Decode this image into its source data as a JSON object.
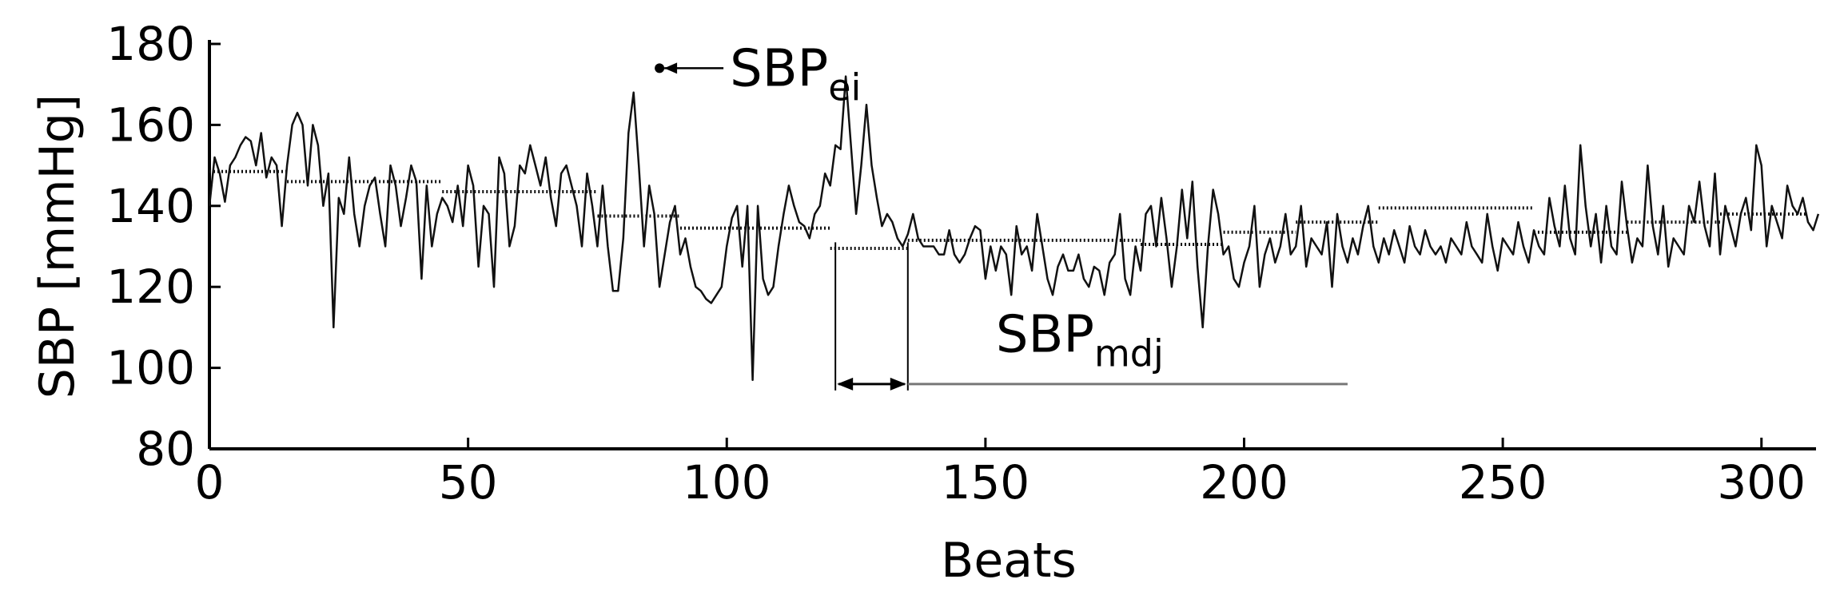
{
  "chart_data": {
    "type": "line",
    "xlabel": "Beats",
    "ylabel": "SBP [mmHg]",
    "xlim": [
      0,
      309
    ],
    "ylim": [
      80,
      180
    ],
    "xticks": [
      0,
      50,
      100,
      150,
      200,
      250,
      300
    ],
    "yticks": [
      80,
      100,
      120,
      140,
      160,
      180
    ],
    "grid": false,
    "legend": "none",
    "colors": {
      "line": "#111111",
      "segment": "#111111",
      "annotation": "#777777"
    },
    "series": [
      {
        "values": [
          140,
          152,
          148,
          141,
          150,
          152,
          155,
          157,
          156,
          150,
          158,
          147,
          152,
          150,
          135,
          150,
          160,
          163,
          160,
          145,
          160,
          155,
          140,
          148,
          110,
          142,
          138,
          152,
          138,
          130,
          140,
          145,
          147,
          138,
          130,
          150,
          145,
          135,
          142,
          150,
          146,
          122,
          145,
          130,
          138,
          142,
          140,
          136,
          145,
          135,
          150,
          145,
          125,
          140,
          138,
          120,
          152,
          148,
          130,
          135,
          150,
          148,
          155,
          150,
          145,
          152,
          142,
          135,
          148,
          150,
          145,
          140,
          130,
          148,
          140,
          130,
          145,
          130,
          119,
          119,
          132,
          158,
          168,
          150,
          130,
          145,
          138,
          120,
          128,
          136,
          140,
          128,
          132,
          125,
          120,
          119,
          117,
          116,
          118,
          120,
          130,
          137,
          140,
          125,
          140,
          97,
          140,
          122,
          118,
          120,
          130,
          138,
          145,
          140,
          136,
          135,
          132,
          138,
          140,
          148,
          145,
          155,
          154,
          172,
          155,
          138,
          150,
          165,
          150,
          142,
          135,
          138,
          136,
          132,
          130,
          133,
          138,
          132,
          130,
          130,
          130,
          128,
          128,
          134,
          128,
          126,
          128,
          132,
          135,
          134,
          122,
          130,
          124,
          130,
          128,
          118,
          135,
          128,
          130,
          124,
          138,
          130,
          122,
          118,
          125,
          128,
          124,
          124,
          128,
          122,
          120,
          125,
          124,
          118,
          126,
          128,
          138,
          122,
          118,
          130,
          124,
          138,
          140,
          130,
          142,
          132,
          120,
          130,
          144,
          132,
          146,
          125,
          110,
          130,
          144,
          138,
          128,
          130,
          122,
          120,
          126,
          130,
          140,
          120,
          128,
          132,
          126,
          130,
          138,
          128,
          130,
          140,
          125,
          132,
          130,
          128,
          136,
          120,
          138,
          130,
          126,
          132,
          128,
          135,
          140,
          130,
          126,
          132,
          128,
          134,
          130,
          126,
          135,
          130,
          128,
          134,
          130,
          128,
          130,
          126,
          132,
          130,
          128,
          136,
          130,
          128,
          126,
          138,
          130,
          124,
          132,
          130,
          128,
          136,
          130,
          126,
          134,
          130,
          128,
          142,
          135,
          130,
          145,
          132,
          128,
          155,
          140,
          130,
          138,
          126,
          140,
          130,
          128,
          146,
          135,
          126,
          132,
          130,
          150,
          135,
          128,
          140,
          125,
          132,
          130,
          128,
          140,
          136,
          146,
          135,
          130,
          148,
          128,
          140,
          135,
          130,
          138,
          142,
          134,
          155,
          150,
          130,
          140,
          136,
          132,
          145,
          140,
          138,
          142,
          136,
          134,
          138
        ]
      }
    ],
    "segments": [
      {
        "x0": 0,
        "x1": 15,
        "y": 148.5
      },
      {
        "x0": 15,
        "x1": 45,
        "y": 146
      },
      {
        "x0": 45,
        "x1": 75,
        "y": 143.5
      },
      {
        "x0": 75,
        "x1": 91,
        "y": 137.5
      },
      {
        "x0": 91,
        "x1": 120,
        "y": 134.5
      },
      {
        "x0": 120,
        "x1": 135,
        "y": 129.5
      },
      {
        "x0": 135,
        "x1": 180,
        "y": 131.5
      },
      {
        "x0": 180,
        "x1": 196,
        "y": 130.5
      },
      {
        "x0": 196,
        "x1": 210,
        "y": 133.5
      },
      {
        "x0": 210,
        "x1": 226,
        "y": 136
      },
      {
        "x0": 226,
        "x1": 256,
        "y": 139.5
      },
      {
        "x0": 256,
        "x1": 274,
        "y": 133.5
      },
      {
        "x0": 274,
        "x1": 292,
        "y": 136
      },
      {
        "x0": 292,
        "x1": 309,
        "y": 138
      }
    ],
    "annotations": {
      "ei": {
        "label_main": "SBP",
        "label_sub": "ei",
        "point": {
          "x": 87,
          "y": 174
        }
      },
      "mdj": {
        "label_main": "SBP",
        "label_sub": "mdj",
        "x_start": 121,
        "x_end": 135,
        "y_arrow": 96,
        "line_end_x": 220
      }
    }
  }
}
